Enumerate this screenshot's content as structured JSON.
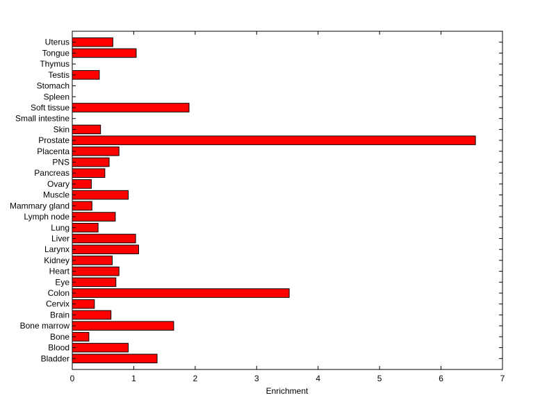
{
  "chart_data": {
    "type": "bar",
    "orientation": "horizontal",
    "title": "",
    "xlabel": "Enrichment",
    "ylabel": "",
    "xlim": [
      0,
      7
    ],
    "xticks": [
      "0",
      "1",
      "2",
      "3",
      "4",
      "5",
      "6",
      "7"
    ],
    "grid": false,
    "bar_color": "#ff0000",
    "bar_edge_color": "#000000",
    "categories": [
      "Bladder",
      "Blood",
      "Bone",
      "Bone marrow",
      "Brain",
      "Cervix",
      "Colon",
      "Eye",
      "Heart",
      "Kidney",
      "Larynx",
      "Liver",
      "Lung",
      "Lymph node",
      "Mammary gland",
      "Muscle",
      "Ovary",
      "Pancreas",
      "PNS",
      "Placenta",
      "Prostate",
      "Skin",
      "Small intestine",
      "Soft tissue",
      "Spleen",
      "Stomach",
      "Testis",
      "Thymus",
      "Tongue",
      "Uterus"
    ],
    "values": [
      1.38,
      0.91,
      0.27,
      1.65,
      0.63,
      0.36,
      3.53,
      0.71,
      0.76,
      0.65,
      1.08,
      1.03,
      0.42,
      0.7,
      0.32,
      0.91,
      0.31,
      0.53,
      0.6,
      0.76,
      6.56,
      0.46,
      0.0,
      1.9,
      0.0,
      0.0,
      0.44,
      0.0,
      1.04,
      0.66
    ]
  }
}
